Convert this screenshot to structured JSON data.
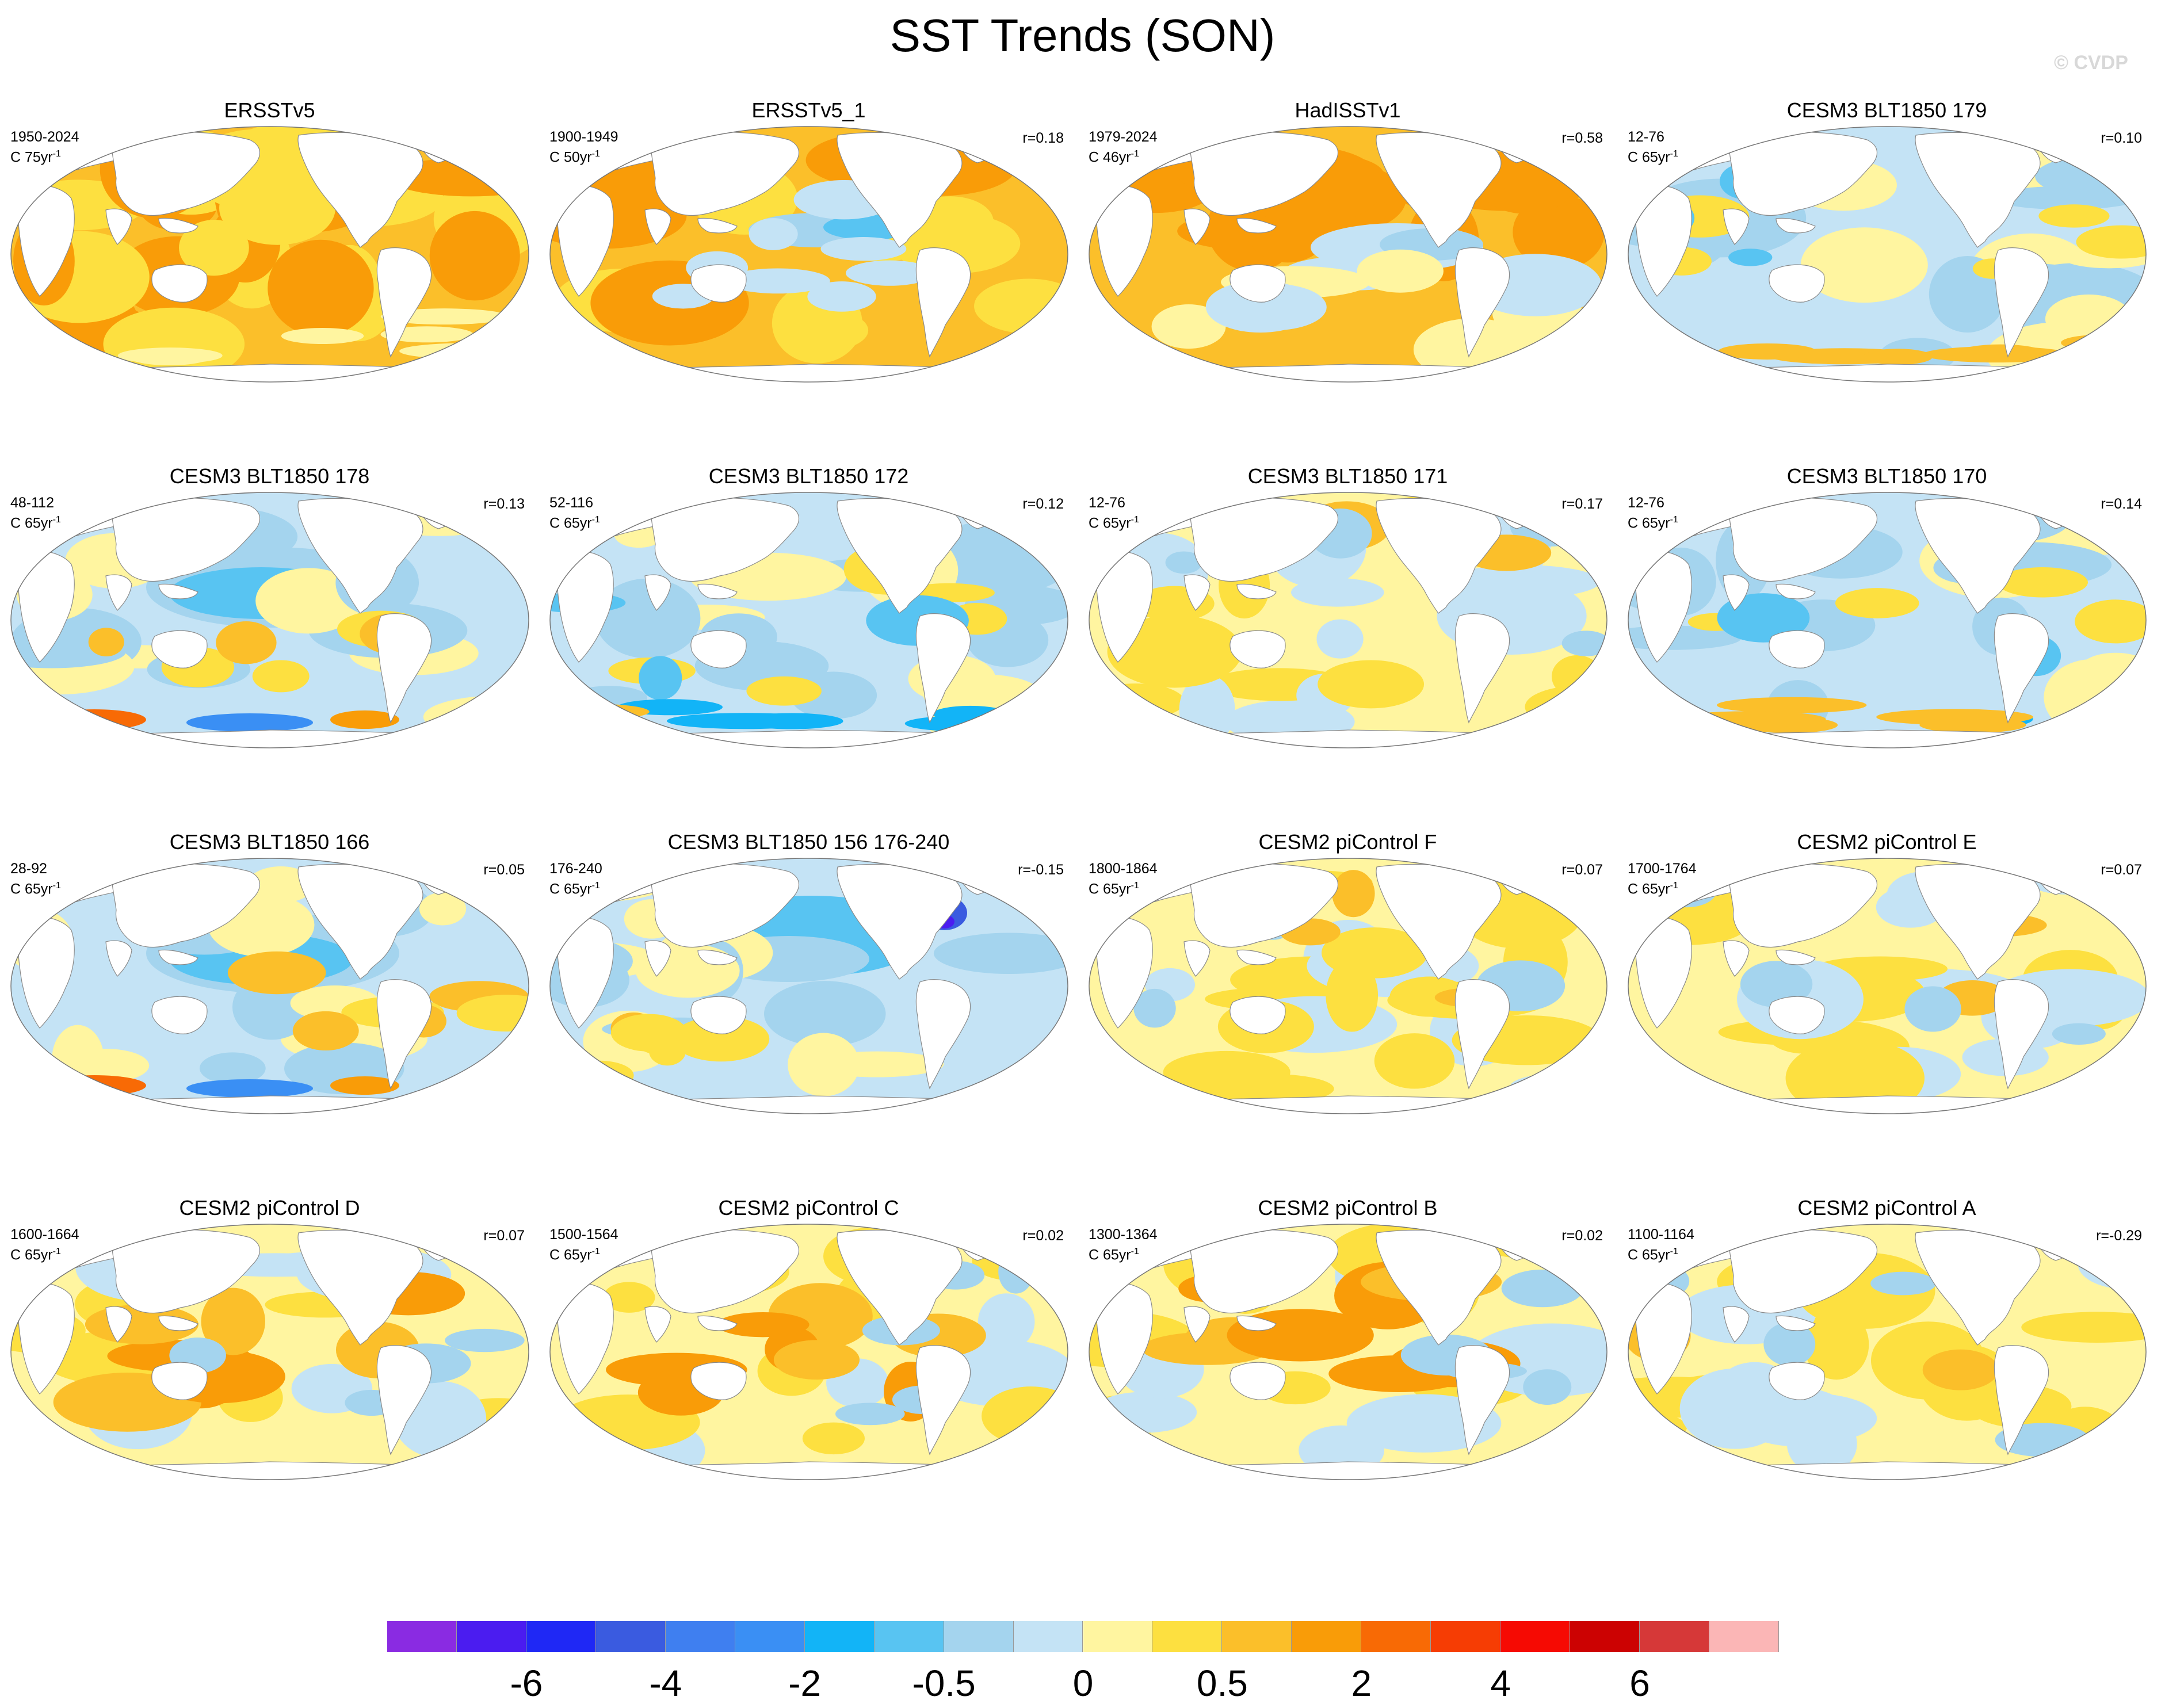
{
  "title": "SST Trends (SON)",
  "watermark": "© CVDP",
  "colormap": [
    "#8a2be2",
    "#4b1cf0",
    "#1f28f5",
    "#3a5be0",
    "#3f7ff0",
    "#3a8ff4",
    "#12b4f7",
    "#58c4f2",
    "#a4d4ee",
    "#c4e3f5",
    "#fff5a0",
    "#fde040",
    "#fbbf2a",
    "#f99c08",
    "#f86a05",
    "#f63d04",
    "#f60a03",
    "#cc0202",
    "#d63838",
    "#fbb6b6"
  ],
  "colorbar_labels": [
    "-6",
    "-4",
    "-2",
    "-0.5",
    "0",
    "0.5",
    "2",
    "4",
    "6"
  ],
  "panels": [
    {
      "title": "ERSSTv5",
      "years": "1950-2024",
      "units": "C 75yr",
      "r": "",
      "pattern": "obs_warm"
    },
    {
      "title": "ERSSTv5_1",
      "years": "1900-1949",
      "units": "C 50yr",
      "r": "r=0.18",
      "pattern": "obs_early"
    },
    {
      "title": "HadISSTv1",
      "years": "1979-2024",
      "units": "C 46yr",
      "r": "r=0.58",
      "pattern": "obs_lanina"
    },
    {
      "title": "CESM3 BLT1850 179",
      "years": "12-76",
      "units": "C 65yr",
      "r": "r=0.10",
      "pattern": "cool_mix"
    },
    {
      "title": "CESM3 BLT1850 178",
      "years": "48-112",
      "units": "C 65yr",
      "r": "r=0.13",
      "pattern": "cool_strong"
    },
    {
      "title": "CESM3 BLT1850 172",
      "years": "52-116",
      "units": "C 65yr",
      "r": "r=0.12",
      "pattern": "cool_mix"
    },
    {
      "title": "CESM3 BLT1850 171",
      "years": "12-76",
      "units": "C 65yr",
      "r": "r=0.17",
      "pattern": "mixed"
    },
    {
      "title": "CESM3 BLT1850 170",
      "years": "12-76",
      "units": "C 65yr",
      "r": "r=0.14",
      "pattern": "cool_mix"
    },
    {
      "title": "CESM3 BLT1850 166",
      "years": "28-92",
      "units": "C 65yr",
      "r": "r=0.05",
      "pattern": "cool_strong"
    },
    {
      "title": "CESM3 BLT1850 156 176-240",
      "years": "176-240",
      "units": "C 65yr",
      "r": "r=-0.15",
      "pattern": "cool_atl"
    },
    {
      "title": "CESM2 piControl F",
      "years": "1800-1864",
      "units": "C 65yr",
      "r": "r=0.07",
      "pattern": "mixed"
    },
    {
      "title": "CESM2 piControl E",
      "years": "1700-1764",
      "units": "C 65yr",
      "r": "r=0.07",
      "pattern": "mixed"
    },
    {
      "title": "CESM2 piControl D",
      "years": "1600-1664",
      "units": "C 65yr",
      "r": "r=0.07",
      "pattern": "warm_mix"
    },
    {
      "title": "CESM2 piControl C",
      "years": "1500-1564",
      "units": "C 65yr",
      "r": "r=0.02",
      "pattern": "warm_mix"
    },
    {
      "title": "CESM2 piControl B",
      "years": "1300-1364",
      "units": "C 65yr",
      "r": "r=0.02",
      "pattern": "warm_mix"
    },
    {
      "title": "CESM2 piControl A",
      "years": "1100-1164",
      "units": "C 65yr",
      "r": "r=-0.29",
      "pattern": "mixed"
    }
  ]
}
